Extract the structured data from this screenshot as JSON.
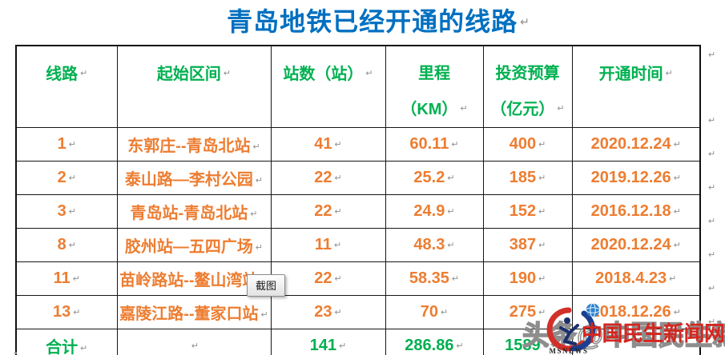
{
  "title": {
    "text": "青岛地铁已经开通的线路"
  },
  "table": {
    "headers": [
      {
        "label": "线路"
      },
      {
        "label": "起始区间"
      },
      {
        "label": "站数（站）"
      },
      {
        "label": "里程\n（KM）"
      },
      {
        "label": "投资预算\n（亿元）"
      },
      {
        "label": "开通时间"
      }
    ],
    "rows": [
      [
        "1",
        "东郭庄--青岛北站",
        "41",
        "60.11",
        "400",
        "2020.12.24"
      ],
      [
        "2",
        "泰山路—李村公园",
        "22",
        "25.2",
        "185",
        "2019.12.26"
      ],
      [
        "3",
        "青岛站-青岛北站",
        "22",
        "24.9",
        "152",
        "2016.12.18"
      ],
      [
        "8",
        "胶州站—五四广场",
        "11",
        "48.3",
        "387",
        "2020.12.24"
      ],
      [
        "11",
        "苗岭路站--鳌山湾站",
        "22",
        "58.35",
        "190",
        "2018.4.23"
      ],
      [
        "13",
        "嘉陵江路--董家口站",
        "23",
        "70",
        "275",
        "2018.12.26"
      ]
    ],
    "total_row": {
      "label": "合计",
      "section": "",
      "stations": "141",
      "mileage": "286.86",
      "investment": "1589",
      "open_time": ""
    }
  },
  "tooltip": {
    "text": "截图"
  },
  "watermark": {
    "back_text": "头条@中国民生新闻网",
    "site_name": "中国民生新闻网",
    "logo_caption": "MSNEWS"
  },
  "colors": {
    "title_blue": "#0070C0",
    "header_green": "#00B050",
    "body_orange": "#ED7D31",
    "watermark_red": "#d5261f"
  },
  "formatting": {
    "paragraph_mark": "↵"
  }
}
